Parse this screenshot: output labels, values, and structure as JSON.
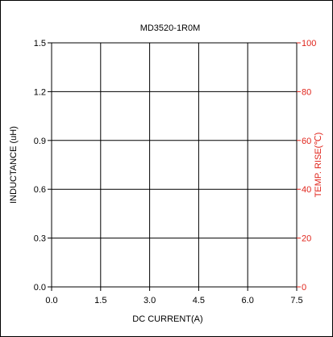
{
  "chart_data": {
    "type": "line",
    "title": "MD3520-1R0M",
    "xlabel": "DC CURRENT(A)",
    "ylabel": "INDUCTANCE (uH)",
    "y2label": "TEMP. RISE(℃)",
    "xlim": [
      0,
      7.5
    ],
    "ylim": [
      0,
      1.5
    ],
    "y2lim": [
      0,
      100
    ],
    "xticks": [
      "0.0",
      "1.5",
      "3.0",
      "4.5",
      "6.0",
      "7.5"
    ],
    "yticks": [
      "0.0",
      "0.3",
      "0.6",
      "0.9",
      "1.2",
      "1.5"
    ],
    "y2ticks": [
      "0",
      "20",
      "40",
      "60",
      "80",
      "100"
    ],
    "grid": true,
    "series": [],
    "colors": {
      "left_axis": "#000000",
      "right_axis": "#e0241b",
      "grid": "#000000"
    }
  }
}
